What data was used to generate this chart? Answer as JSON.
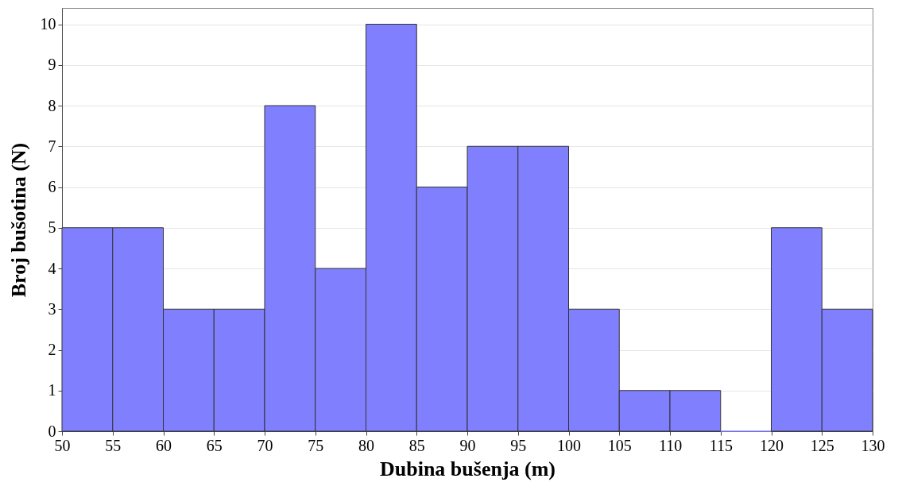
{
  "chart_data": {
    "type": "histogram",
    "xlabel": "Dubina bušenja (m)",
    "ylabel": "Broj bušotina (N)",
    "bins": [
      50,
      55,
      60,
      65,
      70,
      75,
      80,
      85,
      90,
      95,
      100,
      105,
      110,
      115,
      120,
      125,
      130
    ],
    "values": [
      5,
      5,
      3,
      3,
      8,
      4,
      10,
      6,
      7,
      7,
      3,
      1,
      1,
      0,
      5,
      3
    ],
    "color": "#8080ff",
    "xlim": [
      50,
      130
    ],
    "xticks": [
      50,
      55,
      60,
      65,
      70,
      75,
      80,
      85,
      90,
      95,
      100,
      105,
      110,
      115,
      120,
      125,
      130
    ],
    "ylim": [
      0,
      10.4
    ],
    "yticks": [
      0,
      1,
      2,
      3,
      4,
      5,
      6,
      7,
      8,
      9,
      10
    ],
    "grid": "y"
  }
}
